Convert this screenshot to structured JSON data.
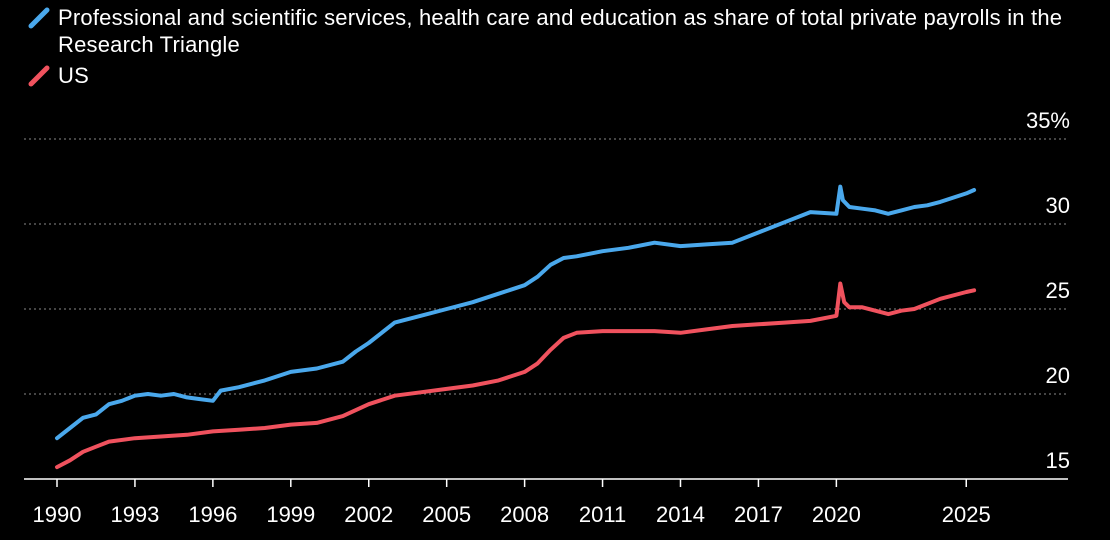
{
  "chart_data": {
    "type": "line",
    "title": "",
    "xlabel": "",
    "ylabel": "",
    "ylim": [
      15,
      35
    ],
    "y_ticks": [
      15,
      20,
      25,
      30,
      35
    ],
    "y_tick_labels": [
      "15",
      "20",
      "25",
      "30",
      "35%"
    ],
    "x_range": [
      1990,
      2027.8
    ],
    "x_ticks": [
      1990,
      1993,
      1996,
      1999,
      2002,
      2005,
      2008,
      2011,
      2014,
      2017,
      2020,
      2025
    ],
    "x_tick_labels": [
      "1990",
      "1993",
      "1996",
      "1999",
      "2002",
      "2005",
      "2008",
      "2011",
      "2014",
      "2017",
      "2020",
      "2025"
    ],
    "grid": true,
    "legend_position": "top-left",
    "series": [
      {
        "name": "Professional and scientific services, health care and education as share of total private payrolls in the Research Triangle",
        "color": "#4aa8ec",
        "x": [
          1990,
          1990.5,
          1991,
          1991.5,
          1992,
          1992.5,
          1993,
          1993.5,
          1994,
          1994.5,
          1995,
          1995.5,
          1996,
          1996.3,
          1997,
          1998,
          1999,
          2000,
          2001,
          2001.5,
          2002,
          2002.5,
          2003,
          2004,
          2005,
          2006,
          2007,
          2008,
          2008.5,
          2009,
          2009.5,
          2010,
          2011,
          2012,
          2013,
          2014,
          2015,
          2016,
          2017,
          2018,
          2019,
          2020,
          2020.15,
          2020.25,
          2020.5,
          2021,
          2021.5,
          2022,
          2022.5,
          2023,
          2023.5,
          2024,
          2025,
          2025.3
        ],
        "y": [
          17.4,
          18.0,
          18.6,
          18.8,
          19.4,
          19.6,
          19.9,
          20.0,
          19.9,
          20.0,
          19.8,
          19.7,
          19.6,
          20.2,
          20.4,
          20.8,
          21.3,
          21.5,
          21.9,
          22.5,
          23.0,
          23.6,
          24.2,
          24.6,
          25.0,
          25.4,
          25.9,
          26.4,
          26.9,
          27.6,
          28.0,
          28.1,
          28.4,
          28.6,
          28.9,
          28.7,
          28.8,
          28.9,
          29.5,
          30.1,
          30.7,
          30.6,
          32.2,
          31.4,
          31.0,
          30.9,
          30.8,
          30.6,
          30.8,
          31.0,
          31.1,
          31.3,
          31.8,
          32.0
        ]
      },
      {
        "name": "US",
        "color": "#f0525e",
        "x": [
          1990,
          1990.5,
          1991,
          1991.5,
          1992,
          1993,
          1994,
          1995,
          1996,
          1997,
          1998,
          1999,
          2000,
          2001,
          2002,
          2003,
          2004,
          2005,
          2006,
          2007,
          2008,
          2008.5,
          2009,
          2009.5,
          2010,
          2011,
          2012,
          2013,
          2014,
          2015,
          2016,
          2017,
          2018,
          2019,
          2020,
          2020.15,
          2020.3,
          2020.5,
          2021,
          2021.5,
          2022,
          2022.5,
          2023,
          2024,
          2025,
          2025.3
        ],
        "y": [
          15.7,
          16.1,
          16.6,
          16.9,
          17.2,
          17.4,
          17.5,
          17.6,
          17.8,
          17.9,
          18.0,
          18.2,
          18.3,
          18.7,
          19.4,
          19.9,
          20.1,
          20.3,
          20.5,
          20.8,
          21.3,
          21.8,
          22.6,
          23.3,
          23.6,
          23.7,
          23.7,
          23.7,
          23.6,
          23.8,
          24.0,
          24.1,
          24.2,
          24.3,
          24.6,
          26.5,
          25.4,
          25.1,
          25.1,
          24.9,
          24.7,
          24.9,
          25.0,
          25.6,
          26.0,
          26.1
        ]
      }
    ]
  },
  "legend": {
    "items": [
      {
        "label": "Professional and scientific services, health care and education as share of total private payrolls in the Research Triangle",
        "color": "#4aa8ec"
      },
      {
        "label": "US",
        "color": "#f0525e"
      }
    ]
  }
}
